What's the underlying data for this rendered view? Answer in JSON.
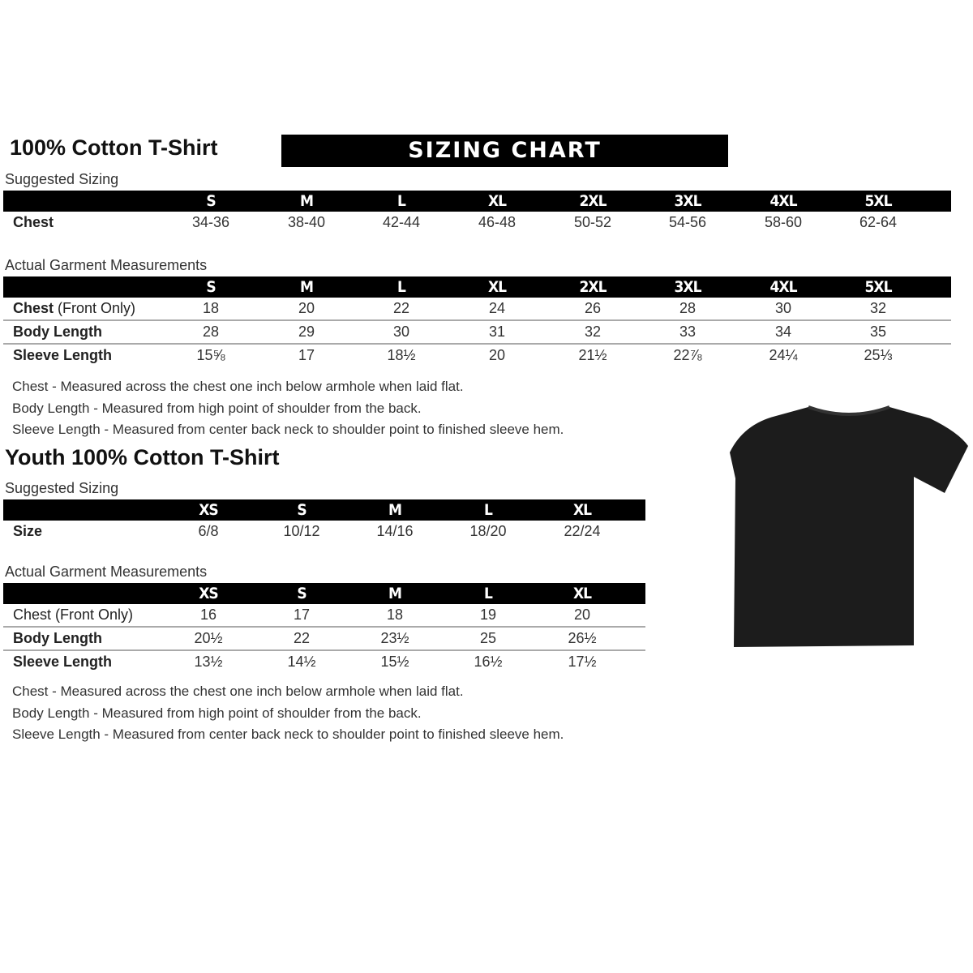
{
  "adult": {
    "title": "100% Cotton T-Shirt",
    "banner": "SIZING CHART",
    "suggested_label": "Suggested Sizing",
    "sizes": [
      "S",
      "M",
      "L",
      "XL",
      "2XL",
      "3XL",
      "4XL",
      "5XL"
    ],
    "suggested_rows": [
      {
        "label": "Chest",
        "values": [
          "34-36",
          "38-40",
          "42-44",
          "46-48",
          "50-52",
          "54-56",
          "58-60",
          "62-64"
        ]
      }
    ],
    "actual_label": "Actual Garment Measurements",
    "actual_rows": [
      {
        "label": "Chest",
        "label_suffix": " (Front Only)",
        "values": [
          "18",
          "20",
          "22",
          "24",
          "26",
          "28",
          "30",
          "32"
        ]
      },
      {
        "label": "Body Length",
        "label_suffix": "",
        "values": [
          "28",
          "29",
          "30",
          "31",
          "32",
          "33",
          "34",
          "35"
        ]
      },
      {
        "label": "Sleeve Length",
        "label_suffix": "",
        "values": [
          "15⅝",
          "17",
          "18½",
          "20",
          "21½",
          "22⅞",
          "24¼",
          "25⅓"
        ]
      }
    ],
    "notes": [
      "Chest - Measured across the chest one inch below armhole when laid flat.",
      "Body Length - Measured from high point of shoulder from the back.",
      "Sleeve Length - Measured from center back neck to shoulder point to finished sleeve hem."
    ]
  },
  "youth": {
    "title": "Youth 100% Cotton T-Shirt",
    "suggested_label": "Suggested Sizing",
    "sizes": [
      "XS",
      "S",
      "M",
      "L",
      "XL"
    ],
    "suggested_rows": [
      {
        "label": "Size",
        "values": [
          "6/8",
          "10/12",
          "14/16",
          "18/20",
          "22/24"
        ]
      }
    ],
    "actual_label": "Actual Garment Measurements",
    "actual_rows": [
      {
        "label": "Chest (Front Only)",
        "label_suffix": "",
        "values": [
          "16",
          "17",
          "18",
          "19",
          "20"
        ]
      },
      {
        "label": "Body Length",
        "label_suffix": "",
        "values": [
          "20½",
          "22",
          "23½",
          "25",
          "26½"
        ]
      },
      {
        "label": "Sleeve Length",
        "label_suffix": "",
        "values": [
          "13½",
          "14½",
          "15½",
          "16½",
          "17½"
        ]
      }
    ],
    "notes": [
      "Chest - Measured across the chest one inch below armhole when laid flat.",
      "Body Length - Measured from high point of shoulder from the back.",
      "Sleeve Length - Measured from center back neck to shoulder point to finished sleeve hem."
    ]
  },
  "colors": {
    "header_bar": "#000000",
    "shirt": "#1c1c1c",
    "divider": "#aaaaaa"
  }
}
